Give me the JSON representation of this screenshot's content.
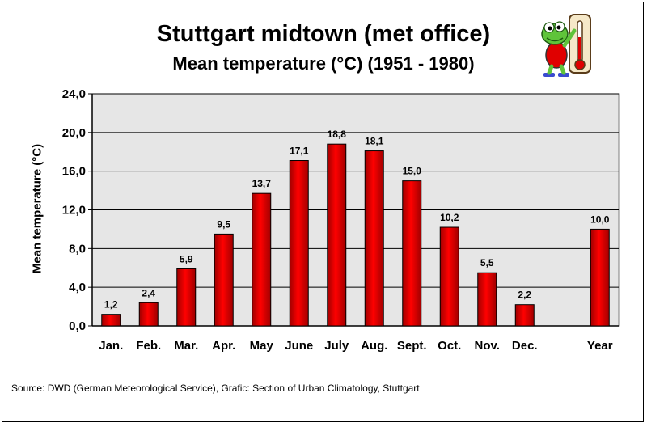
{
  "chart_data": {
    "type": "bar",
    "title": "Stuttgart midtown (met office)",
    "subtitle": "Mean temperature (°C) (1951 - 1980)",
    "ylabel": "Mean temperature (°C)",
    "xlabel": "",
    "categories": [
      "Jan.",
      "Feb.",
      "Mar.",
      "Apr.",
      "May",
      "June",
      "July",
      "Aug.",
      "Sept.",
      "Oct.",
      "Nov.",
      "Dec.",
      "",
      "Year"
    ],
    "values": [
      1.2,
      2.4,
      5.9,
      9.5,
      13.7,
      17.1,
      18.8,
      18.1,
      15.0,
      10.2,
      5.5,
      2.2,
      null,
      10.0
    ],
    "value_labels": [
      "1,2",
      "2,4",
      "5,9",
      "9,5",
      "13,7",
      "17,1",
      "18,8",
      "18,1",
      "15,0",
      "10,2",
      "5,5",
      "2,2",
      "",
      "10,0"
    ],
    "yticks": [
      0,
      4,
      8,
      12,
      16,
      20,
      24
    ],
    "ytick_labels": [
      "0,0",
      "4,0",
      "8,0",
      "12,0",
      "16,0",
      "20,0",
      "24,0"
    ],
    "ylim": [
      0,
      24
    ],
    "grid": true,
    "legend": "none",
    "colors": {
      "bar": "#ff0000",
      "bar_dark": "#a00000",
      "plot_bg": "#e6e6e6"
    }
  },
  "source": "Source: DWD (German Meteorological Service), Grafic: Section of Urban Climatology, Stuttgart",
  "mascot": {
    "icon": "frog-thermometer-icon"
  }
}
